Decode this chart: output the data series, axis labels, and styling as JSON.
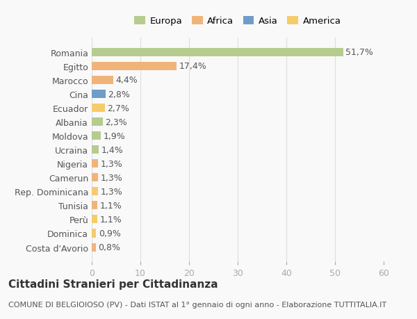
{
  "categories": [
    "Romania",
    "Egitto",
    "Marocco",
    "Cina",
    "Ecuador",
    "Albania",
    "Moldova",
    "Ucraina",
    "Nigeria",
    "Camerun",
    "Rep. Dominicana",
    "Tunisia",
    "Perù",
    "Dominica",
    "Costa d'Avorio"
  ],
  "values": [
    51.7,
    17.4,
    4.4,
    2.8,
    2.7,
    2.3,
    1.9,
    1.4,
    1.3,
    1.3,
    1.3,
    1.1,
    1.1,
    0.9,
    0.8
  ],
  "labels": [
    "51,7%",
    "17,4%",
    "4,4%",
    "2,8%",
    "2,7%",
    "2,3%",
    "1,9%",
    "1,4%",
    "1,3%",
    "1,3%",
    "1,3%",
    "1,1%",
    "1,1%",
    "0,9%",
    "0,8%"
  ],
  "colors": [
    "#b5cc8e",
    "#f0b47a",
    "#f0b47a",
    "#6e9dc9",
    "#f5cc6a",
    "#b5cc8e",
    "#b5cc8e",
    "#b5cc8e",
    "#f0b47a",
    "#f0b47a",
    "#f5cc6a",
    "#f0b47a",
    "#f5cc6a",
    "#f5cc6a",
    "#f0b47a"
  ],
  "legend": {
    "Europa": "#b5cc8e",
    "Africa": "#f0b47a",
    "Asia": "#6e9dc9",
    "America": "#f5cc6a"
  },
  "xlim": [
    0,
    60
  ],
  "xticks": [
    0,
    10,
    20,
    30,
    40,
    50,
    60
  ],
  "title": "Cittadini Stranieri per Cittadinanza",
  "subtitle": "COMUNE DI BELGIOIOSO (PV) - Dati ISTAT al 1° gennaio di ogni anno - Elaborazione TUTTITALIA.IT",
  "background_color": "#f9f9f9",
  "bar_height": 0.6,
  "label_fontsize": 9,
  "tick_fontsize": 9,
  "title_fontsize": 11,
  "subtitle_fontsize": 8
}
